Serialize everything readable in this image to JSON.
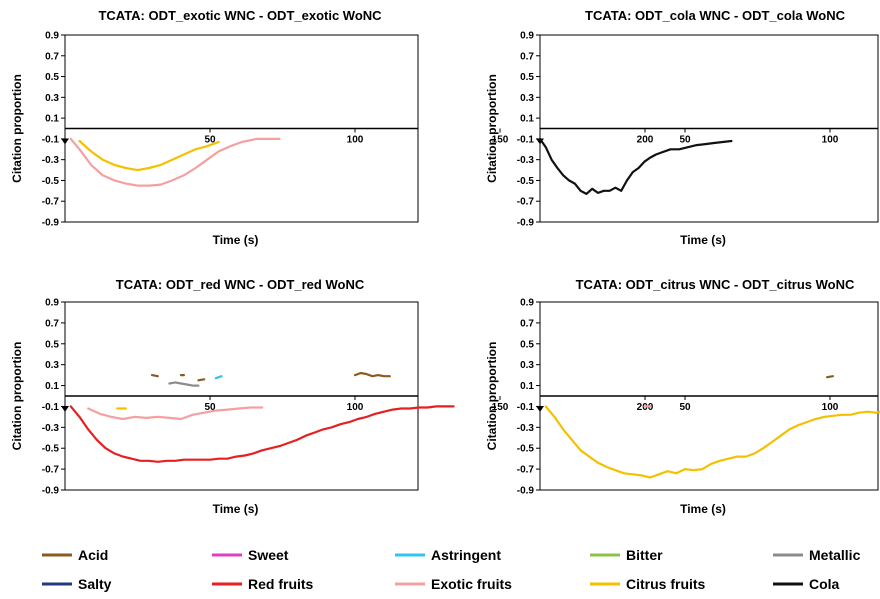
{
  "colors": {
    "Acid": "#8B5A1E",
    "Sweet": "#E040C0",
    "Astringent": "#33C3F0",
    "Bitter": "#8BC34A",
    "Metallic": "#8C8C8C",
    "Salty": "#1F3A7A",
    "Red fruits": "#E62020",
    "Exotic fruits": "#F4A0A0",
    "Citrus fruits": "#F5C000",
    "Cola": "#111111"
  },
  "legend": {
    "placement": "bottom",
    "entries": [
      "Acid",
      "Sweet",
      "Astringent",
      "Bitter",
      "Metallic",
      "Salty",
      "Red fruits",
      "Exotic fruits",
      "Citrus fruits",
      "Cola"
    ]
  },
  "chart_data": [
    {
      "type": "line",
      "title": "TCATA: ODT_exotic WNC - ODT_exotic WoNC",
      "xlabel": "Time (s)",
      "ylabel": "Citation proportion",
      "xlim": [
        0,
        250
      ],
      "ylim": [
        -0.9,
        0.9
      ],
      "xticks": [
        50,
        100,
        150,
        200
      ],
      "yticks": [
        -0.9,
        -0.7,
        -0.5,
        -0.3,
        -0.1,
        0.1,
        0.3,
        0.5,
        0.7,
        0.9
      ],
      "series": [
        {
          "name": "Exotic fruits",
          "x": [
            2,
            5,
            9,
            13,
            17,
            21,
            25,
            29,
            33,
            37,
            41,
            45,
            49,
            53,
            57,
            61,
            66,
            70,
            74
          ],
          "y": [
            -0.1,
            -0.2,
            -0.35,
            -0.45,
            -0.5,
            -0.53,
            -0.55,
            -0.55,
            -0.54,
            -0.5,
            -0.45,
            -0.38,
            -0.3,
            -0.22,
            -0.17,
            -0.13,
            -0.1,
            -0.1,
            -0.1
          ]
        },
        {
          "name": "Citrus fruits",
          "x": [
            5,
            9,
            13,
            17,
            21,
            25,
            29,
            33,
            37,
            41,
            45,
            49,
            53
          ],
          "y": [
            -0.12,
            -0.22,
            -0.3,
            -0.35,
            -0.38,
            -0.4,
            -0.38,
            -0.35,
            -0.3,
            -0.25,
            -0.2,
            -0.17,
            -0.13
          ]
        }
      ]
    },
    {
      "type": "line",
      "title": "TCATA: ODT_cola WNC - ODT_cola WoNC",
      "xlabel": "Time (s)",
      "ylabel": "Citation proportion",
      "xlim": [
        0,
        250
      ],
      "ylim": [
        -0.9,
        0.9
      ],
      "xticks": [
        50,
        100,
        150,
        200
      ],
      "yticks": [
        -0.9,
        -0.7,
        -0.5,
        -0.3,
        -0.1,
        0.1,
        0.3,
        0.5,
        0.7,
        0.9
      ],
      "series": [
        {
          "name": "Cola",
          "x": [
            0,
            2,
            4,
            6,
            8,
            10,
            12,
            14,
            16,
            18,
            20,
            22,
            24,
            26,
            28,
            30,
            32,
            34,
            36,
            38,
            40,
            42,
            45,
            48,
            51,
            54,
            57,
            60,
            63,
            66
          ],
          "y": [
            -0.1,
            -0.18,
            -0.3,
            -0.38,
            -0.45,
            -0.5,
            -0.53,
            -0.6,
            -0.63,
            -0.58,
            -0.62,
            -0.6,
            -0.6,
            -0.57,
            -0.6,
            -0.5,
            -0.42,
            -0.38,
            -0.32,
            -0.28,
            -0.25,
            -0.23,
            -0.2,
            -0.2,
            -0.18,
            -0.16,
            -0.15,
            -0.14,
            -0.13,
            -0.12
          ]
        }
      ]
    },
    {
      "type": "line",
      "title": "TCATA: ODT_red WNC - ODT_red WoNC",
      "xlabel": "Time (s)",
      "ylabel": "Citation proportion",
      "xlim": [
        0,
        250
      ],
      "ylim": [
        -0.9,
        0.9
      ],
      "xticks": [
        50,
        100,
        150,
        200
      ],
      "yticks": [
        -0.9,
        -0.7,
        -0.5,
        -0.3,
        -0.1,
        0.1,
        0.3,
        0.5,
        0.7,
        0.9
      ],
      "series": [
        {
          "name": "Red fruits",
          "x": [
            2,
            5,
            8,
            11,
            14,
            17,
            20,
            23,
            26,
            29,
            32,
            35,
            38,
            41,
            44,
            47,
            50,
            53,
            56,
            59,
            62,
            65,
            68,
            71,
            74,
            77,
            80,
            83,
            86,
            89,
            92,
            95,
            98,
            101,
            104,
            107,
            110,
            113,
            116,
            119,
            122,
            125,
            128,
            131,
            134
          ],
          "y": [
            -0.1,
            -0.2,
            -0.32,
            -0.42,
            -0.5,
            -0.55,
            -0.58,
            -0.6,
            -0.62,
            -0.62,
            -0.63,
            -0.62,
            -0.62,
            -0.61,
            -0.61,
            -0.61,
            -0.61,
            -0.6,
            -0.6,
            -0.58,
            -0.57,
            -0.55,
            -0.52,
            -0.5,
            -0.48,
            -0.45,
            -0.42,
            -0.38,
            -0.35,
            -0.32,
            -0.3,
            -0.27,
            -0.25,
            -0.22,
            -0.2,
            -0.17,
            -0.15,
            -0.13,
            -0.12,
            -0.12,
            -0.11,
            -0.11,
            -0.1,
            -0.1,
            -0.1
          ]
        },
        {
          "name": "Exotic fruits",
          "x": [
            8,
            12,
            16,
            20,
            24,
            28,
            32,
            36,
            40,
            44,
            48,
            52,
            56,
            60,
            64,
            68
          ],
          "y": [
            -0.12,
            -0.17,
            -0.2,
            -0.22,
            -0.2,
            -0.21,
            -0.2,
            -0.21,
            -0.22,
            -0.18,
            -0.16,
            -0.14,
            -0.13,
            -0.12,
            -0.11,
            -0.11
          ]
        },
        {
          "name": "Citrus fruits",
          "x": [
            18,
            21
          ],
          "y": [
            -0.12,
            -0.12
          ]
        },
        {
          "name": "Acid",
          "x": [
            30,
            32
          ],
          "y": [
            0.2,
            0.19
          ]
        },
        {
          "name": "Acid",
          "x": [
            40,
            41
          ],
          "y": [
            0.2,
            0.2
          ]
        },
        {
          "name": "Acid",
          "x": [
            100,
            102,
            104,
            106,
            108,
            110,
            112
          ],
          "y": [
            0.2,
            0.22,
            0.21,
            0.19,
            0.2,
            0.19,
            0.19
          ]
        },
        {
          "name": "Metallic",
          "x": [
            36,
            38,
            40,
            42,
            44,
            46
          ],
          "y": [
            0.12,
            0.13,
            0.12,
            0.11,
            0.1,
            0.1
          ]
        },
        {
          "name": "Astringent",
          "x": [
            52,
            54
          ],
          "y": [
            0.17,
            0.19
          ]
        },
        {
          "name": "Acid",
          "x": [
            46,
            48
          ],
          "y": [
            0.15,
            0.16
          ]
        }
      ]
    },
    {
      "type": "line",
      "title": "TCATA: ODT_citrus WNC - ODT_citrus WoNC",
      "xlabel": "Time (s)",
      "ylabel": "Citation proportion",
      "xlim": [
        0,
        250
      ],
      "ylim": [
        -0.9,
        0.9
      ],
      "xticks": [
        50,
        100,
        150,
        200
      ],
      "yticks": [
        -0.9,
        -0.7,
        -0.5,
        -0.3,
        -0.1,
        0.1,
        0.3,
        0.5,
        0.7,
        0.9
      ],
      "series": [
        {
          "name": "Citrus fruits",
          "x": [
            2,
            5,
            8,
            11,
            14,
            17,
            20,
            23,
            26,
            29,
            32,
            35,
            38,
            41,
            44,
            47,
            50,
            53,
            56,
            59,
            62,
            65,
            68,
            71,
            74,
            77,
            80,
            83,
            86,
            89,
            92,
            95,
            98,
            101,
            104,
            107,
            110,
            113,
            116,
            119,
            122,
            125,
            128,
            131,
            134
          ],
          "y": [
            -0.1,
            -0.2,
            -0.32,
            -0.42,
            -0.52,
            -0.58,
            -0.64,
            -0.68,
            -0.71,
            -0.74,
            -0.75,
            -0.76,
            -0.78,
            -0.75,
            -0.72,
            -0.74,
            -0.7,
            -0.71,
            -0.7,
            -0.65,
            -0.62,
            -0.6,
            -0.58,
            -0.58,
            -0.55,
            -0.5,
            -0.44,
            -0.38,
            -0.32,
            -0.28,
            -0.25,
            -0.22,
            -0.2,
            -0.19,
            -0.18,
            -0.18,
            -0.16,
            -0.15,
            -0.16,
            -0.14,
            -0.12,
            -0.11,
            -0.1,
            -0.1,
            -0.1
          ]
        },
        {
          "name": "Exotic fruits",
          "x": [
            36,
            38
          ],
          "y": [
            -0.1,
            -0.1
          ]
        },
        {
          "name": "Acid",
          "x": [
            99,
            101
          ],
          "y": [
            0.18,
            0.19
          ]
        }
      ]
    }
  ]
}
